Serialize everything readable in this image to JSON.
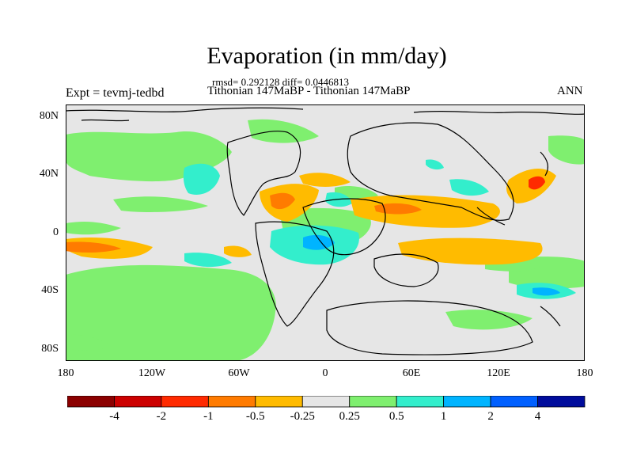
{
  "title": "Evaporation (in mm/day)",
  "stats": "rmsd= 0.292128 diff= 0.0446813",
  "subtitle": "Tithonian 147MaBP - Tithonian 147MaBP",
  "left_label": "Expt = tevmj-tedbd",
  "right_label": "ANN",
  "lat_ticks": [
    "80N",
    "40N",
    "0",
    "40S",
    "80S"
  ],
  "lon_ticks": [
    "180",
    "120W",
    "60W",
    "0",
    "60E",
    "120E",
    "180"
  ],
  "colorbar": {
    "colors": [
      "#8b0000",
      "#cc0000",
      "#ff2a00",
      "#ff7b00",
      "#ffbb00",
      "#e6e6e6",
      "#7fef6f",
      "#33eecc",
      "#00b4ff",
      "#0060ff",
      "#000c9c"
    ],
    "labels": [
      "-4",
      "-2",
      "-1",
      "-0.5",
      "-0.25",
      "0.25",
      "0.5",
      "1",
      "2",
      "4"
    ]
  }
}
